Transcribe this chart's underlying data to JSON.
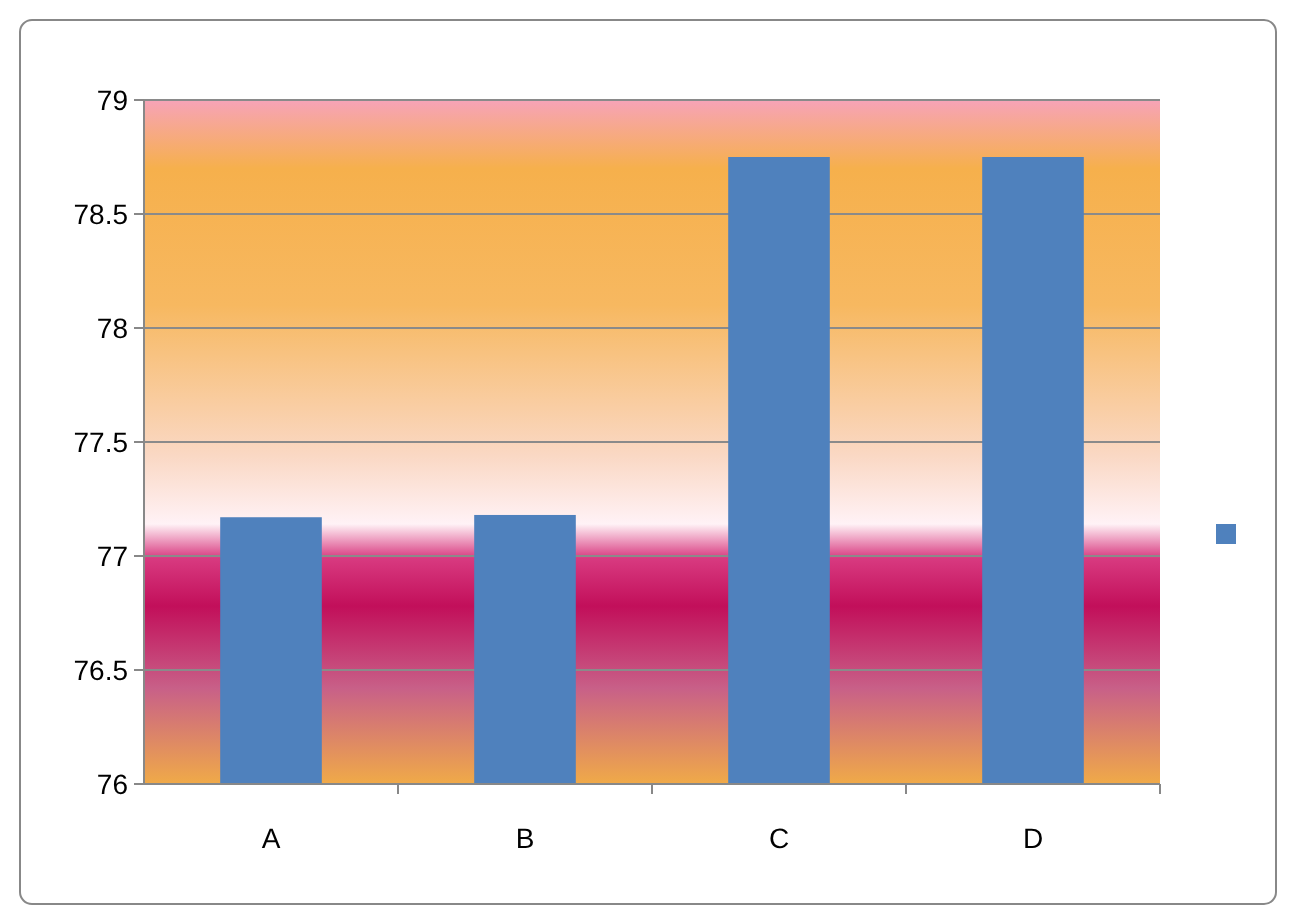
{
  "chart_data": {
    "type": "bar",
    "categories": [
      "A",
      "B",
      "C",
      "D"
    ],
    "series": [
      {
        "color": "#4f81bd",
        "values": [
          77.17,
          77.18,
          78.75,
          78.75
        ]
      }
    ],
    "ylim": [
      76,
      79
    ],
    "yticks": [
      76,
      76.5,
      77,
      77.5,
      78,
      78.5,
      79
    ],
    "grid": "y"
  }
}
